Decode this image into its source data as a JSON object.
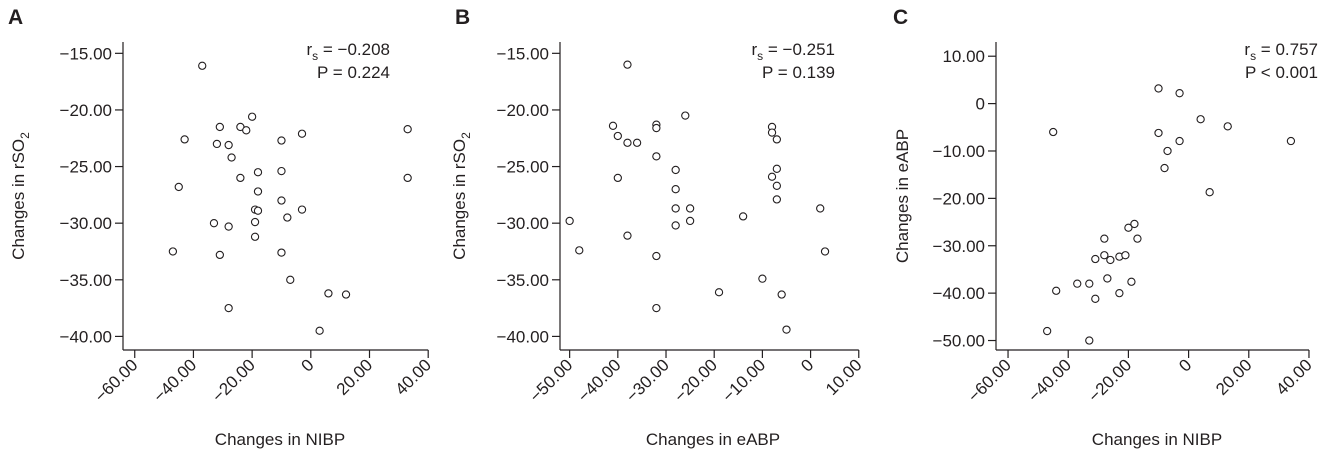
{
  "chart_data": [
    {
      "type": "scatter",
      "panel": "A",
      "xlabel": "Changes in NIBP",
      "ylabel": "Changes in rSO",
      "ylabel_sub": "2",
      "stat_r": "r",
      "stat_r_sub": "s",
      "stat_r_value": " = −0.208",
      "stat_p": "P = 0.224",
      "x_ticks": [
        -60,
        -40,
        -20,
        0,
        20,
        40
      ],
      "x_tick_labels": [
        "−60.00",
        "−40.00",
        "−20.00",
        "0",
        "20.00",
        "40.00"
      ],
      "y_ticks": [
        -15,
        -20,
        -25,
        -30,
        -35,
        -40
      ],
      "y_tick_labels": [
        "−15.00",
        "−20.00",
        "−25.00",
        "−30.00",
        "−35.00",
        "−40.00"
      ],
      "xlim": [
        -64,
        43
      ],
      "ylim": [
        -41.2,
        -14
      ],
      "points": [
        {
          "x": -37,
          "y": -16.1
        },
        {
          "x": -43,
          "y": -22.6
        },
        {
          "x": -45,
          "y": -26.8
        },
        {
          "x": -47,
          "y": -32.5
        },
        {
          "x": -31,
          "y": -21.5
        },
        {
          "x": -32,
          "y": -23.0
        },
        {
          "x": -33,
          "y": -30.0
        },
        {
          "x": -31,
          "y": -32.8
        },
        {
          "x": -28,
          "y": -23.1
        },
        {
          "x": -27,
          "y": -24.2
        },
        {
          "x": -28,
          "y": -30.3
        },
        {
          "x": -28,
          "y": -37.5
        },
        {
          "x": -24,
          "y": -21.5
        },
        {
          "x": -22,
          "y": -21.8
        },
        {
          "x": -20,
          "y": -20.6
        },
        {
          "x": -24,
          "y": -26.0
        },
        {
          "x": -18,
          "y": -25.5
        },
        {
          "x": -18,
          "y": -27.2
        },
        {
          "x": -19,
          "y": -28.8
        },
        {
          "x": -18,
          "y": -28.9
        },
        {
          "x": -19,
          "y": -29.9
        },
        {
          "x": -19,
          "y": -31.2
        },
        {
          "x": -10,
          "y": -22.7
        },
        {
          "x": -10,
          "y": -25.4
        },
        {
          "x": -10,
          "y": -28.0
        },
        {
          "x": -8,
          "y": -29.5
        },
        {
          "x": -10,
          "y": -32.6
        },
        {
          "x": -7,
          "y": -35.0
        },
        {
          "x": -3,
          "y": -22.1
        },
        {
          "x": -3,
          "y": -28.8
        },
        {
          "x": 6,
          "y": -36.2
        },
        {
          "x": 12,
          "y": -36.3
        },
        {
          "x": 3,
          "y": -39.5
        },
        {
          "x": 33,
          "y": -21.7
        },
        {
          "x": 33,
          "y": -26.0
        }
      ]
    },
    {
      "type": "scatter",
      "panel": "B",
      "xlabel": "Changes in eABP",
      "ylabel": "Changes in rSO",
      "ylabel_sub": "2",
      "stat_r": "r",
      "stat_r_sub": "s",
      "stat_r_value": " = −0.251",
      "stat_p": "P = 0.139",
      "x_ticks": [
        -50,
        -40,
        -30,
        -20,
        -10,
        0,
        10
      ],
      "x_tick_labels": [
        "−50.00",
        "−40.00",
        "−30.00",
        "−20.00",
        "−10.00",
        "0",
        "10.00"
      ],
      "y_ticks": [
        -15,
        -20,
        -25,
        -30,
        -35,
        -40
      ],
      "y_tick_labels": [
        "−15.00",
        "−20.00",
        "−25.00",
        "−30.00",
        "−35.00",
        "−40.00"
      ],
      "xlim": [
        -52,
        11.5
      ],
      "ylim": [
        -41.2,
        -14
      ],
      "points": [
        {
          "x": -50,
          "y": -29.8
        },
        {
          "x": -48,
          "y": -32.4
        },
        {
          "x": -41,
          "y": -21.4
        },
        {
          "x": -40,
          "y": -22.3
        },
        {
          "x": -40,
          "y": -26.0
        },
        {
          "x": -38,
          "y": -16.0
        },
        {
          "x": -38,
          "y": -22.9
        },
        {
          "x": -38,
          "y": -31.1
        },
        {
          "x": -36,
          "y": -22.9
        },
        {
          "x": -32,
          "y": -21.3
        },
        {
          "x": -32,
          "y": -21.6
        },
        {
          "x": -32,
          "y": -24.1
        },
        {
          "x": -32,
          "y": -32.9
        },
        {
          "x": -32,
          "y": -37.5
        },
        {
          "x": -26,
          "y": -20.5
        },
        {
          "x": -28,
          "y": -25.3
        },
        {
          "x": -28,
          "y": -27.0
        },
        {
          "x": -28,
          "y": -28.7
        },
        {
          "x": -28,
          "y": -30.2
        },
        {
          "x": -25,
          "y": -28.7
        },
        {
          "x": -25,
          "y": -29.8
        },
        {
          "x": -19,
          "y": -36.1
        },
        {
          "x": -14,
          "y": -29.4
        },
        {
          "x": -10,
          "y": -34.9
        },
        {
          "x": -8,
          "y": -21.5
        },
        {
          "x": -8,
          "y": -22.0
        },
        {
          "x": -7,
          "y": -22.6
        },
        {
          "x": -8,
          "y": -25.9
        },
        {
          "x": -7,
          "y": -25.2
        },
        {
          "x": -7,
          "y": -26.7
        },
        {
          "x": -7,
          "y": -27.9
        },
        {
          "x": -6,
          "y": -36.3
        },
        {
          "x": -5,
          "y": -39.4
        },
        {
          "x": 2,
          "y": -28.7
        },
        {
          "x": 3,
          "y": -32.5
        }
      ]
    },
    {
      "type": "scatter",
      "panel": "C",
      "xlabel": "Changes in NIBP",
      "ylabel": "Changes in eABP",
      "ylabel_sub": "",
      "stat_r": "r",
      "stat_r_sub": "s",
      "stat_r_value": " = 0.757",
      "stat_p": "P < 0.001",
      "x_ticks": [
        -60,
        -40,
        -20,
        0,
        20,
        40
      ],
      "x_tick_labels": [
        "−60.00",
        "−40.00",
        "−20.00",
        "0",
        "20.00",
        "40.00"
      ],
      "y_ticks": [
        10,
        0,
        -10,
        -20,
        -30,
        -40,
        -50
      ],
      "y_tick_labels": [
        "10.00",
        "0",
        "−10.00",
        "−20.00",
        "−30.00",
        "−40.00",
        "−50.00"
      ],
      "xlim": [
        -64,
        43
      ],
      "ylim": [
        -52,
        13
      ],
      "points": [
        {
          "x": -45,
          "y": -6.0
        },
        {
          "x": -47,
          "y": -48.0
        },
        {
          "x": -44,
          "y": -39.5
        },
        {
          "x": -37,
          "y": -38.0
        },
        {
          "x": -33,
          "y": -38.0
        },
        {
          "x": -33,
          "y": -50.0
        },
        {
          "x": -31,
          "y": -41.2
        },
        {
          "x": -31,
          "y": -32.8
        },
        {
          "x": -28,
          "y": -28.5
        },
        {
          "x": -28,
          "y": -32.0
        },
        {
          "x": -27,
          "y": -36.9
        },
        {
          "x": -26,
          "y": -33.0
        },
        {
          "x": -23,
          "y": -40.0
        },
        {
          "x": -23,
          "y": -32.3
        },
        {
          "x": -21,
          "y": -32.0
        },
        {
          "x": -20,
          "y": -26.2
        },
        {
          "x": -19,
          "y": -37.6
        },
        {
          "x": -18,
          "y": -25.4
        },
        {
          "x": -17,
          "y": -28.5
        },
        {
          "x": -10,
          "y": 3.2
        },
        {
          "x": -10,
          "y": -6.2
        },
        {
          "x": -8,
          "y": -13.6
        },
        {
          "x": -7,
          "y": -10.0
        },
        {
          "x": -3,
          "y": 2.2
        },
        {
          "x": -3,
          "y": -7.9
        },
        {
          "x": 4,
          "y": -3.3
        },
        {
          "x": 7,
          "y": -18.7
        },
        {
          "x": 13,
          "y": -4.8
        },
        {
          "x": 34,
          "y": -7.9
        }
      ]
    }
  ]
}
